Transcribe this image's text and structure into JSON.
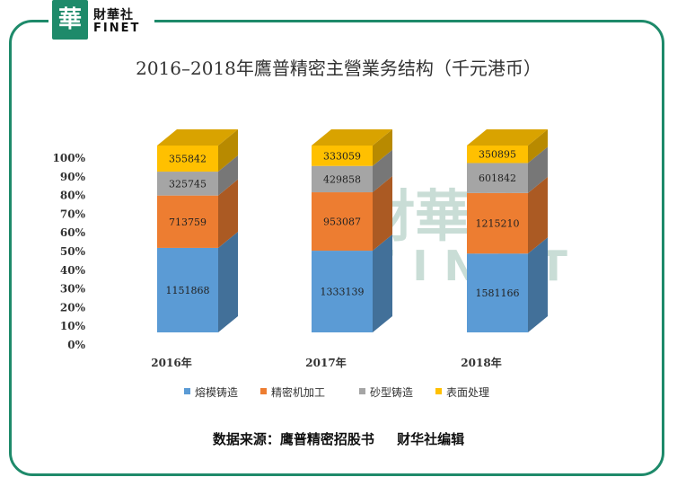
{
  "logo": {
    "glyph": "華",
    "cn": "財華社",
    "en": "FINET"
  },
  "title": "2016–2018年鷹普精密主營業务结构（千元港币）",
  "source": {
    "text": "数据来源：鹰普精密招股书",
    "editor": "财华社编辑"
  },
  "watermark": {
    "cn": "財華社",
    "en": "FINET"
  },
  "colors": {
    "frame": "#1e8a6a",
    "series": [
      "#5b9bd5",
      "#ed7d31",
      "#a5a5a5",
      "#ffc000"
    ]
  },
  "chart_data": {
    "type": "bar",
    "stacked": "percent",
    "title": "2016–2018年鷹普精密主營業务结构（千元港币）",
    "categories": [
      "2016年",
      "2017年",
      "2018年"
    ],
    "series": [
      {
        "name": "熔模铸造",
        "values": [
          1151868,
          1333139,
          1581166
        ]
      },
      {
        "name": "精密机加工",
        "values": [
          713759,
          953087,
          1215210
        ]
      },
      {
        "name": "砂型铸造",
        "values": [
          325745,
          429858,
          601842
        ]
      },
      {
        "name": "表面处理",
        "values": [
          355842,
          333059,
          350895
        ]
      }
    ],
    "y_ticks": [
      "0%",
      "10%",
      "20%",
      "30%",
      "40%",
      "50%",
      "60%",
      "70%",
      "80%",
      "90%",
      "100%"
    ],
    "ylim": [
      0,
      100
    ],
    "grid": false,
    "legend_position": "bottom"
  }
}
